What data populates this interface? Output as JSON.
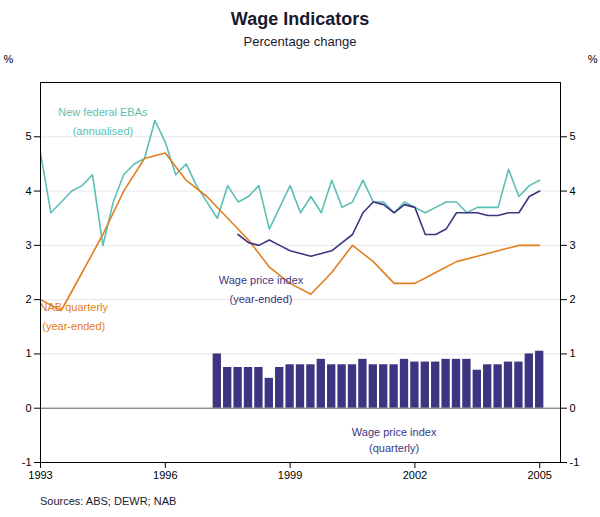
{
  "chart_data": {
    "type": "line",
    "title": "Wage Indicators",
    "subtitle": "Percentage change",
    "caption": "Sources: ABS; DEWR; NAB",
    "ylabel": "%",
    "y2label": "%",
    "xlim": [
      1993.0,
      2005.5
    ],
    "xticks": [
      1993,
      1996,
      1999,
      2002,
      2005
    ],
    "ylim": [
      -1,
      6
    ],
    "yticks": [
      -1,
      0,
      1,
      2,
      3,
      4,
      5
    ],
    "y2lim": [
      -1,
      6
    ],
    "y2ticks": [
      -1,
      0,
      1,
      2,
      3,
      4,
      5
    ],
    "grid": true,
    "series": [
      {
        "name": "New federal EBAs (annualised)",
        "type": "line",
        "color": "#5BBFB5",
        "x": [
          1993.0,
          1993.25,
          1993.5,
          1993.75,
          1994.0,
          1994.25,
          1994.5,
          1994.75,
          1995.0,
          1995.25,
          1995.5,
          1995.75,
          1996.0,
          1996.25,
          1996.5,
          1996.75,
          1997.0,
          1997.25,
          1997.5,
          1997.75,
          1998.0,
          1998.25,
          1998.5,
          1998.75,
          1999.0,
          1999.25,
          1999.5,
          1999.75,
          2000.0,
          2000.25,
          2000.5,
          2000.75,
          2001.0,
          2001.25,
          2001.5,
          2001.75,
          2002.0,
          2002.25,
          2002.5,
          2002.75,
          2003.0,
          2003.25,
          2003.5,
          2003.75,
          2004.0,
          2004.25,
          2004.5,
          2004.75,
          2005.0
        ],
        "values": [
          4.7,
          3.6,
          3.8,
          4.0,
          4.1,
          4.3,
          3.0,
          3.8,
          4.3,
          4.5,
          4.6,
          5.3,
          4.9,
          4.3,
          4.5,
          4.1,
          3.8,
          3.5,
          4.1,
          3.8,
          3.9,
          4.1,
          3.3,
          3.7,
          4.1,
          3.6,
          3.9,
          3.6,
          4.2,
          3.7,
          3.8,
          4.2,
          3.8,
          3.8,
          3.6,
          3.8,
          3.7,
          3.6,
          3.7,
          3.8,
          3.8,
          3.6,
          3.7,
          3.7,
          3.7,
          4.4,
          3.9,
          4.1,
          4.2
        ]
      },
      {
        "name": "NAB quarterly (year-ended)",
        "type": "line",
        "color": "#E08020",
        "x": [
          1993.0,
          1993.5,
          1994.0,
          1994.5,
          1995.0,
          1995.5,
          1996.0,
          1996.5,
          1997.0,
          1997.5,
          1998.0,
          1998.5,
          1999.0,
          1999.5,
          2000.0,
          2000.5,
          2001.0,
          2001.5,
          2002.0,
          2002.5,
          2003.0,
          2003.5,
          2004.0,
          2004.5,
          2005.0
        ],
        "values": [
          2.0,
          1.8,
          2.5,
          3.2,
          4.0,
          4.6,
          4.7,
          4.2,
          3.9,
          3.5,
          3.1,
          2.6,
          2.3,
          2.1,
          2.5,
          3.0,
          2.7,
          2.3,
          2.3,
          2.5,
          2.7,
          2.8,
          2.9,
          3.0,
          3.0
        ]
      },
      {
        "name": "Wage price index (year-ended)",
        "type": "line",
        "color": "#3D3580",
        "x": [
          1997.75,
          1998.0,
          1998.25,
          1998.5,
          1998.75,
          1999.0,
          1999.25,
          1999.5,
          1999.75,
          2000.0,
          2000.25,
          2000.5,
          2000.75,
          2001.0,
          2001.25,
          2001.5,
          2001.75,
          2002.0,
          2002.25,
          2002.5,
          2002.75,
          2003.0,
          2003.25,
          2003.5,
          2003.75,
          2004.0,
          2004.25,
          2004.5,
          2004.75,
          2005.0
        ],
        "values": [
          3.2,
          3.05,
          3.0,
          3.1,
          3.0,
          2.9,
          2.85,
          2.8,
          2.85,
          2.9,
          3.05,
          3.2,
          3.6,
          3.8,
          3.75,
          3.6,
          3.75,
          3.7,
          3.2,
          3.2,
          3.3,
          3.6,
          3.6,
          3.6,
          3.55,
          3.55,
          3.6,
          3.6,
          3.9,
          4.0
        ]
      },
      {
        "name": "Wage price index (quarterly)",
        "type": "bar",
        "color": "#3D3580",
        "x": [
          1997.25,
          1997.5,
          1997.75,
          1998.0,
          1998.25,
          1998.5,
          1998.75,
          1999.0,
          1999.25,
          1999.5,
          1999.75,
          2000.0,
          2000.25,
          2000.5,
          2000.75,
          2001.0,
          2001.25,
          2001.5,
          2001.75,
          2002.0,
          2002.25,
          2002.5,
          2002.75,
          2003.0,
          2003.25,
          2003.5,
          2003.75,
          2004.0,
          2004.25,
          2004.5,
          2004.75,
          2005.0
        ],
        "values": [
          1.0,
          0.75,
          0.75,
          0.75,
          0.75,
          0.55,
          0.75,
          0.8,
          0.8,
          0.8,
          0.9,
          0.8,
          0.8,
          0.8,
          0.9,
          0.8,
          0.8,
          0.8,
          0.9,
          0.85,
          0.85,
          0.85,
          0.9,
          0.9,
          0.9,
          0.7,
          0.8,
          0.8,
          0.85,
          0.85,
          1.0,
          1.05
        ]
      }
    ],
    "annotations": [
      {
        "text": "New federal EBAs",
        "x": 1994.5,
        "y": 5.45,
        "color": "#5BBFB5"
      },
      {
        "text": "(annualised)",
        "x": 1994.5,
        "y": 5.1,
        "color": "#5BBFB5"
      },
      {
        "text": "NAB quarterly",
        "x": 1993.8,
        "y": 1.85,
        "color": "#E08020"
      },
      {
        "text": "(year-ended)",
        "x": 1993.8,
        "y": 1.5,
        "color": "#E08020"
      },
      {
        "text": "Wage price index",
        "x": 1998.3,
        "y": 2.35,
        "color": "#3D3580"
      },
      {
        "text": "(year-ended)",
        "x": 1998.3,
        "y": 2.0,
        "color": "#3D3580"
      },
      {
        "text": "Wage price index",
        "x": 2001.5,
        "y": -0.45,
        "color": "#3D3580"
      },
      {
        "text": "(quarterly)",
        "x": 2001.5,
        "y": -0.75,
        "color": "#3D3580"
      }
    ]
  }
}
